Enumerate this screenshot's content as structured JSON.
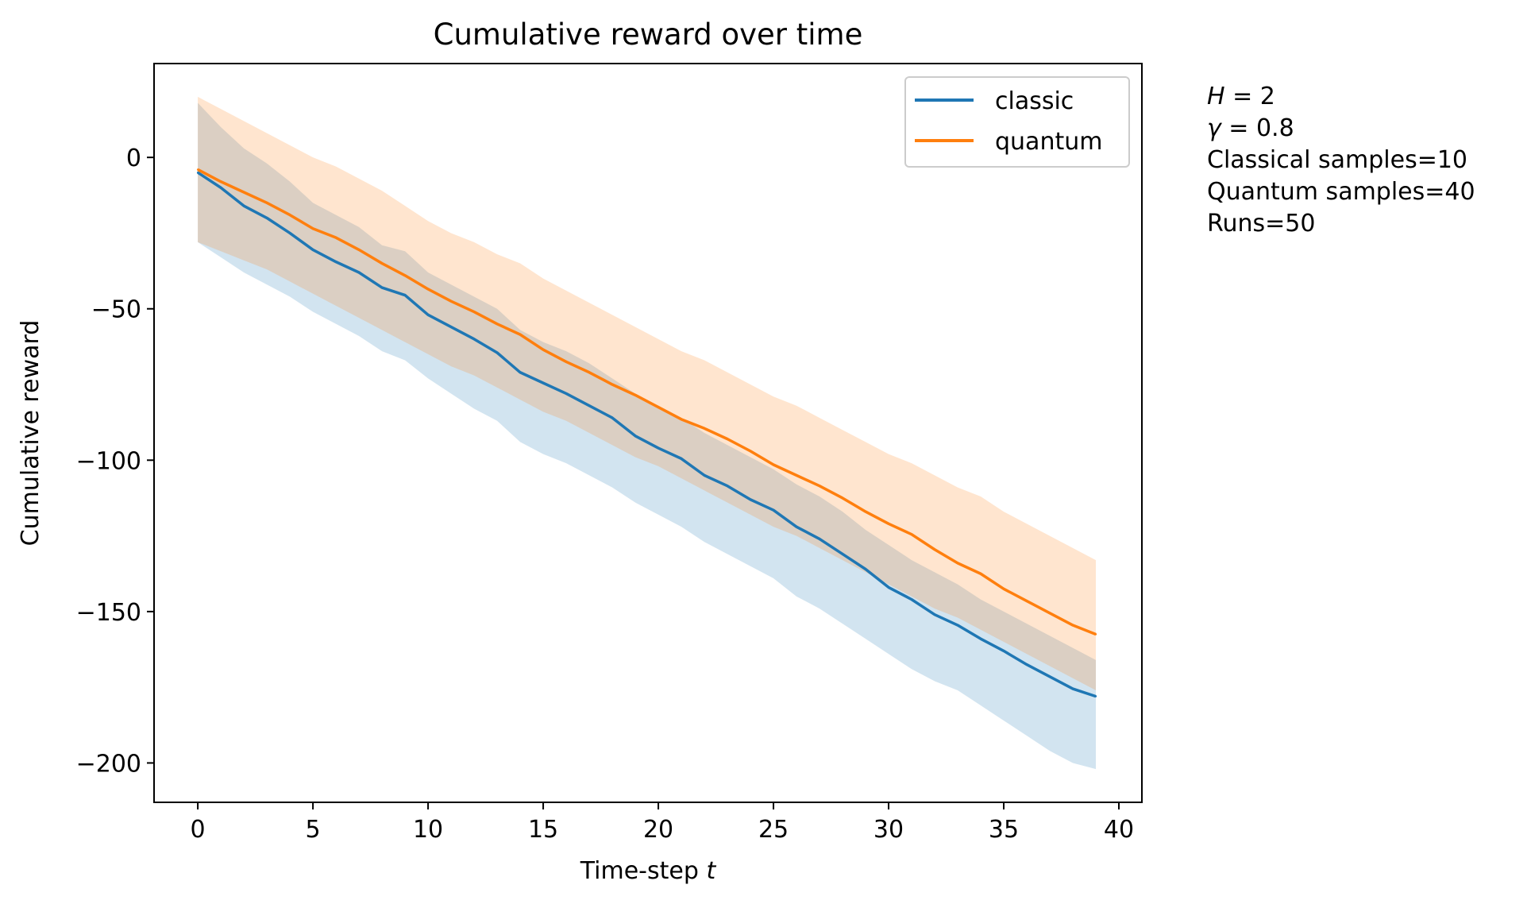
{
  "chart_data": {
    "type": "line",
    "title": "Cumulative reward over time",
    "xlabel": "Time-step",
    "xlabel_var": "t",
    "ylabel": "Cumulative reward",
    "xlim": [
      -1.9,
      41
    ],
    "ylim": [
      -213,
      31
    ],
    "xticks": [
      0,
      5,
      10,
      15,
      20,
      25,
      30,
      35,
      40
    ],
    "xtick_labels": [
      "0",
      "5",
      "10",
      "15",
      "20",
      "25",
      "30",
      "35",
      "40"
    ],
    "yticks": [
      0,
      -50,
      -100,
      -150,
      -200
    ],
    "ytick_labels": [
      "0",
      "−50",
      "−100",
      "−150",
      "−200"
    ],
    "grid": false,
    "legend_position": "top-right",
    "x": [
      0,
      1,
      2,
      3,
      4,
      5,
      6,
      7,
      8,
      9,
      10,
      11,
      12,
      13,
      14,
      15,
      16,
      17,
      18,
      19,
      20,
      21,
      22,
      23,
      24,
      25,
      26,
      27,
      28,
      29,
      30,
      31,
      32,
      33,
      34,
      35,
      36,
      37,
      38,
      39
    ],
    "series": [
      {
        "name": "classic",
        "color": "#1f77b4",
        "values": [
          -5,
          -10,
          -16,
          -20,
          -25,
          -30.5,
          -34.5,
          -38,
          -43,
          -45.5,
          -52,
          -56,
          -60,
          -64.5,
          -71,
          -74.5,
          -78,
          -82,
          -86,
          -92,
          -96,
          -99.5,
          -105,
          -108.5,
          -113,
          -116.5,
          -122,
          -126,
          -131,
          -136,
          -142,
          -146,
          -151,
          -154.5,
          -159,
          -163,
          -167.5,
          -171.5,
          -175.5,
          -178
        ],
        "band_upper": [
          18,
          10,
          3,
          -2,
          -8,
          -15,
          -19,
          -23,
          -29,
          -31,
          -38,
          -42,
          -46,
          -50,
          -57,
          -61,
          -64,
          -68,
          -73,
          -78,
          -82,
          -86,
          -91,
          -95,
          -99,
          -103,
          -108,
          -112,
          -117,
          -123,
          -128,
          -133,
          -137,
          -141,
          -146,
          -150,
          -154,
          -158,
          -162,
          -166
        ],
        "band_lower": [
          -28,
          -33,
          -38,
          -42,
          -46,
          -51,
          -55,
          -59,
          -64,
          -67,
          -73,
          -78,
          -83,
          -87,
          -94,
          -98,
          -101,
          -105,
          -109,
          -114,
          -118,
          -122,
          -127,
          -131,
          -135,
          -139,
          -145,
          -149,
          -154,
          -159,
          -164,
          -169,
          -173,
          -176,
          -181,
          -186,
          -191,
          -196,
          -200,
          -202
        ]
      },
      {
        "name": "quantum",
        "color": "#ff7f0e",
        "values": [
          -4,
          -8,
          -11.5,
          -15,
          -19,
          -23.5,
          -26.5,
          -30.5,
          -35,
          -39,
          -43.5,
          -47.5,
          -51,
          -55,
          -58.5,
          -63.5,
          -67.5,
          -71,
          -75,
          -78.5,
          -82.5,
          -86.5,
          -89.5,
          -93,
          -97,
          -101.5,
          -105,
          -108.5,
          -112.5,
          -117,
          -121,
          -124.5,
          -129.5,
          -134,
          -137.5,
          -142.5,
          -146.5,
          -150.5,
          -154.5,
          -157.5
        ],
        "band_upper": [
          20,
          16,
          12,
          8,
          4,
          0,
          -3,
          -7,
          -11,
          -16,
          -21,
          -25,
          -28,
          -32,
          -35,
          -40,
          -44,
          -48,
          -52,
          -56,
          -60,
          -64,
          -67,
          -71,
          -75,
          -79,
          -82,
          -86,
          -90,
          -94,
          -98,
          -101,
          -105,
          -109,
          -112,
          -117,
          -121,
          -125,
          -129,
          -133
        ],
        "band_lower": [
          -28,
          -31,
          -34,
          -37,
          -41,
          -45,
          -49,
          -53,
          -57,
          -61,
          -65,
          -69,
          -72,
          -76,
          -80,
          -84,
          -87,
          -91,
          -95,
          -99,
          -102,
          -106,
          -110,
          -114,
          -118,
          -122,
          -125,
          -129,
          -133,
          -137,
          -141,
          -145,
          -149,
          -152,
          -156,
          -160,
          -164,
          -168,
          -172,
          -176
        ]
      }
    ],
    "annotation_lines": [
      {
        "italic": "H",
        "rest": " = 2"
      },
      {
        "italic": "γ",
        "rest": " = 0.8"
      },
      {
        "italic": "",
        "rest": "Classical samples=10"
      },
      {
        "italic": "",
        "rest": "Quantum samples=40"
      },
      {
        "italic": "",
        "rest": "Runs=50"
      }
    ]
  }
}
